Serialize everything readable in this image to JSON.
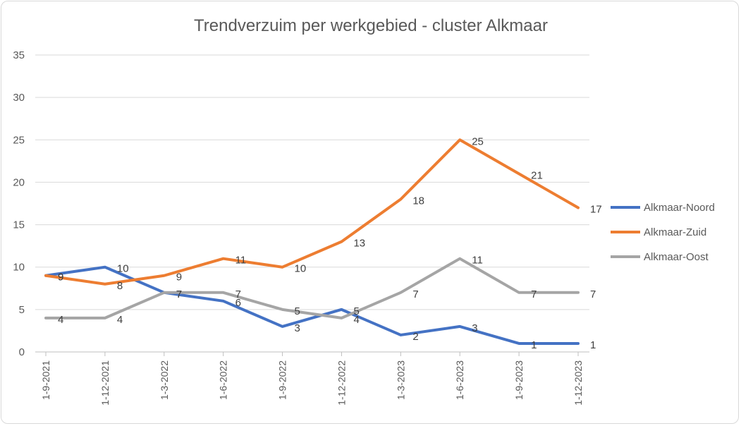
{
  "chart_data": {
    "type": "line",
    "title": "Trendverzuim per werkgebied - cluster Alkmaar",
    "xlabel": "",
    "ylabel": "",
    "categories": [
      "1-9-2021",
      "1-12-2021",
      "1-3-2022",
      "1-6-2022",
      "1-9-2022",
      "1-12-2022",
      "1-3-2023",
      "1-6-2023",
      "1-9-2023",
      "1-12-2023"
    ],
    "ylim": [
      0,
      35
    ],
    "yticks": [
      "0",
      "5",
      "10",
      "15",
      "20",
      "25",
      "30",
      "35"
    ],
    "grid": true,
    "legend_position": "right",
    "series": [
      {
        "name": "Alkmaar-Noord",
        "color": "#4472c4",
        "values": [
          9,
          10,
          7,
          6,
          3,
          5,
          2,
          3,
          1,
          1
        ]
      },
      {
        "name": "Alkmaar-Zuid",
        "color": "#ed7d31",
        "values": [
          9,
          8,
          9,
          11,
          10,
          13,
          18,
          25,
          21,
          17
        ]
      },
      {
        "name": "Alkmaar-Oost",
        "color": "#a5a5a5",
        "values": [
          4,
          4,
          7,
          7,
          5,
          4,
          7,
          11,
          7,
          7
        ]
      }
    ]
  }
}
